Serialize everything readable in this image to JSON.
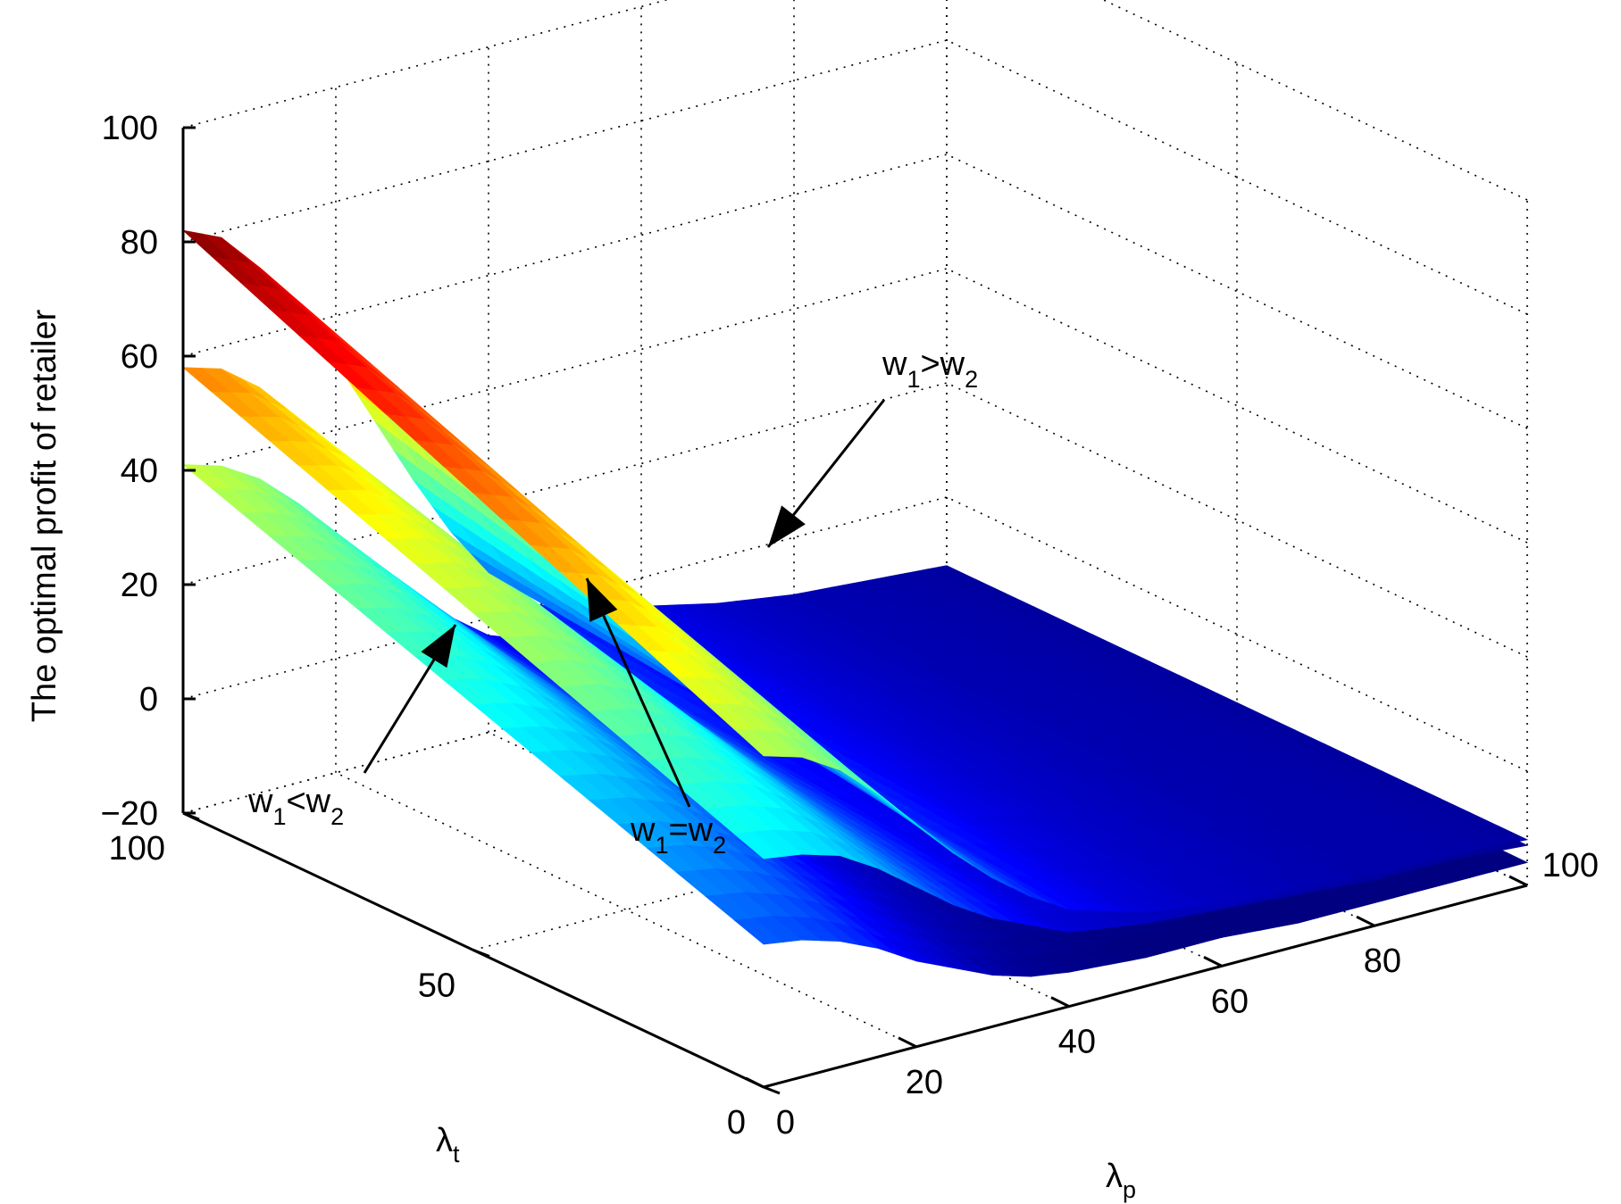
{
  "chart_data": {
    "type": "surface3d",
    "xlabel": "λ",
    "xlabel_sub": "p",
    "ylabel": "λ",
    "ylabel_sub": "t",
    "zlabel": "The optimal profit of retailer",
    "xlim": [
      0,
      100
    ],
    "ylim": [
      0,
      100
    ],
    "zlim": [
      -20,
      100
    ],
    "x_ticks": [
      "0",
      "20",
      "40",
      "60",
      "80",
      "100"
    ],
    "y_ticks": [
      "0",
      "50",
      "100"
    ],
    "z_ticks": [
      "−20",
      "0",
      "20",
      "40",
      "60",
      "80",
      "100"
    ],
    "grid": true,
    "colormap": "jet",
    "series": [
      {
        "name": "w1>w2",
        "lambda_t": [
          100,
          90,
          80,
          70,
          60,
          50,
          40,
          30,
          20,
          10,
          0
        ],
        "lambda_p_profile": [
          0,
          5,
          10,
          15,
          20,
          25,
          30,
          35,
          40,
          50,
          60,
          70,
          80,
          90,
          100
        ],
        "profit_at_lambda_t_100": [
          82,
          79,
          72,
          63,
          52,
          40,
          28,
          17,
          8,
          0,
          -5,
          -8,
          -10,
          -11,
          -12
        ],
        "profit_at_lambda_t_0": [
          38,
          36,
          32,
          26,
          19,
          12,
          6,
          1,
          -3,
          -7,
          -9,
          -10,
          -11,
          -11,
          -12
        ]
      },
      {
        "name": "w1=w2",
        "lambda_t": [
          100,
          90,
          80,
          70,
          60,
          50,
          40,
          30,
          20,
          10,
          0
        ],
        "lambda_p_profile": [
          0,
          5,
          10,
          15,
          20,
          25,
          30,
          35,
          40,
          50,
          60,
          70,
          80,
          90,
          100
        ],
        "profit_at_lambda_t_100": [
          58,
          56,
          51,
          44,
          36,
          27,
          18,
          10,
          4,
          -2,
          -6,
          -9,
          -10,
          -11,
          -12
        ],
        "profit_at_lambda_t_0": [
          20,
          19,
          17,
          13,
          8,
          3,
          -1,
          -4,
          -7,
          -9,
          -10,
          -11,
          -12,
          -12,
          -13
        ]
      },
      {
        "name": "w1<w2",
        "lambda_t": [
          100,
          90,
          80,
          70,
          60,
          50,
          40,
          30,
          20,
          10,
          0
        ],
        "lambda_p_profile": [
          0,
          5,
          10,
          15,
          20,
          25,
          30,
          35,
          40,
          50,
          60,
          70,
          80,
          90,
          100
        ],
        "profit_at_lambda_t_100": [
          41,
          39,
          35,
          29,
          22,
          15,
          8,
          2,
          -3,
          -8,
          -11,
          -13,
          -14,
          -15,
          -15
        ],
        "profit_at_lambda_t_0": [
          5,
          4,
          2,
          -1,
          -5,
          -8,
          -11,
          -13,
          -14,
          -15,
          -15,
          -16,
          -16,
          -16,
          -16
        ]
      }
    ],
    "annotations": [
      {
        "text": "w",
        "sub1": "1",
        "rel": ">",
        "text2": "w",
        "sub2": "2",
        "target": "w1>w2"
      },
      {
        "text": "w",
        "sub1": "1",
        "rel": "=",
        "text2": "w",
        "sub2": "2",
        "target": "w1=w2"
      },
      {
        "text": "w",
        "sub1": "1",
        "rel": "<",
        "text2": "w",
        "sub2": "2",
        "target": "w1<w2"
      }
    ]
  }
}
